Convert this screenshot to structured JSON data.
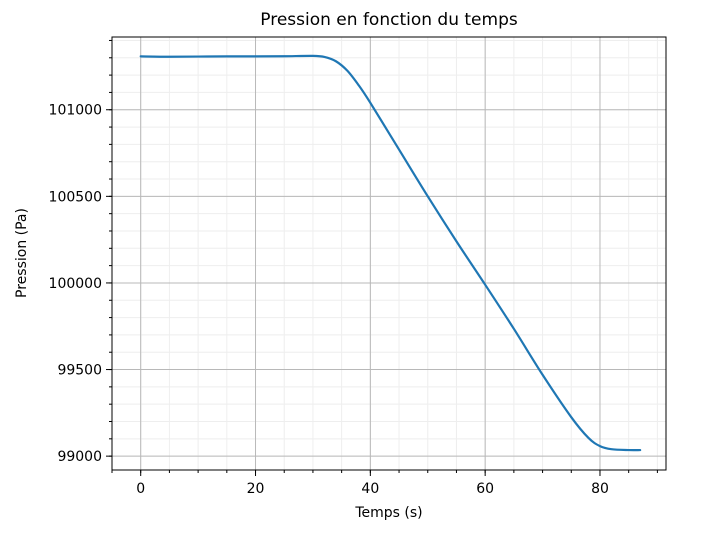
{
  "chart_data": {
    "type": "line",
    "title": "Pression en fonction du temps",
    "xlabel": "Temps (s)",
    "ylabel": "Pression (Pa)",
    "xlim": [
      -5,
      91.5
    ],
    "ylim": [
      98920,
      101420
    ],
    "x_ticks": [
      0,
      20,
      40,
      60,
      80
    ],
    "x_tick_labels": [
      "0",
      "20",
      "40",
      "60",
      "80"
    ],
    "y_ticks": [
      99000,
      99500,
      100000,
      100500,
      101000
    ],
    "y_tick_labels": [
      "99000",
      "99500",
      "100000",
      "100500",
      "101000"
    ],
    "x_minor_step": 5,
    "y_minor_step": 100,
    "grid": true,
    "minor_grid": true,
    "series": [
      {
        "color": "#1f77b4",
        "x": [
          0,
          5,
          10,
          15,
          20,
          25,
          30,
          32,
          34,
          36,
          38,
          40,
          45,
          50,
          55,
          60,
          65,
          70,
          75,
          78,
          80,
          82,
          85,
          87
        ],
        "y": [
          101308,
          101306,
          101307,
          101308,
          101308,
          101309,
          101311,
          101305,
          101280,
          101225,
          101140,
          101040,
          100770,
          100500,
          100240,
          99990,
          99735,
          99470,
          99225,
          99105,
          99058,
          99040,
          99035,
          99035
        ]
      }
    ]
  }
}
